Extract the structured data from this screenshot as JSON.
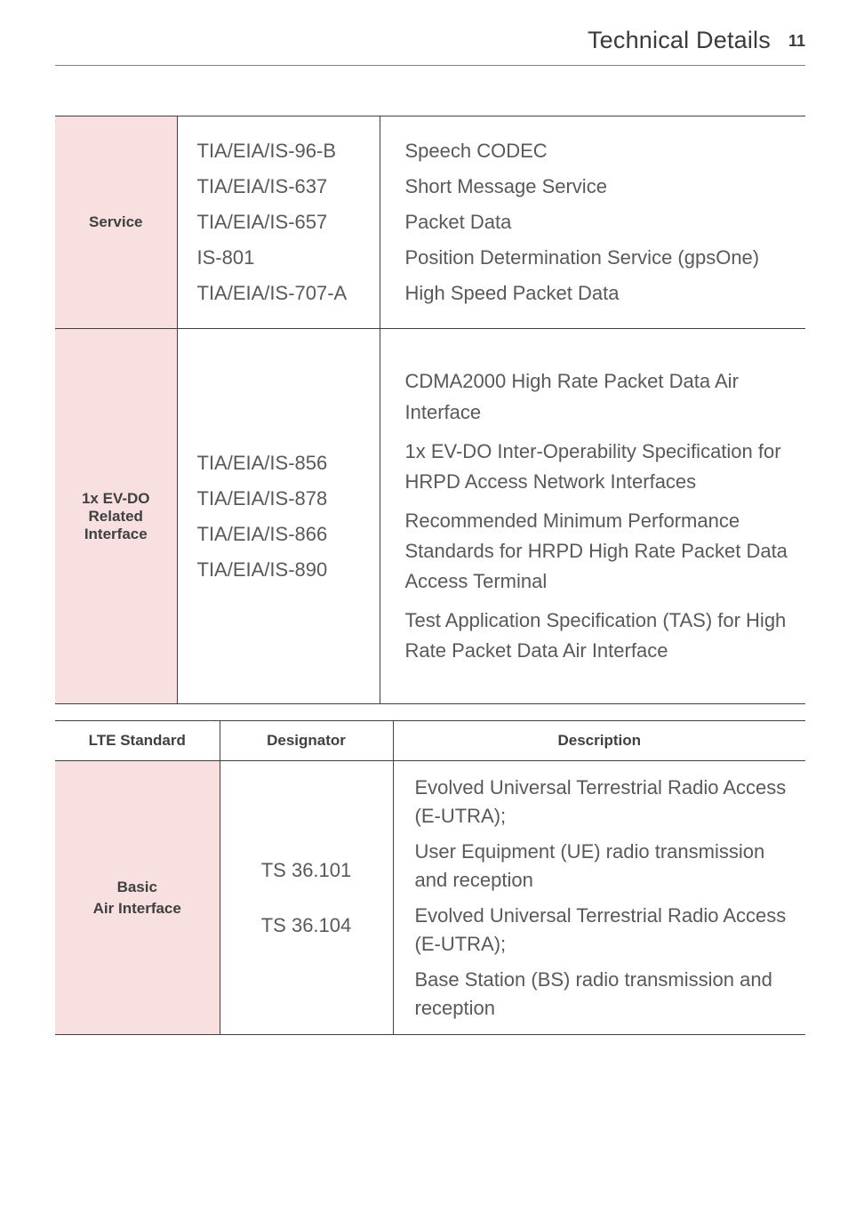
{
  "header": {
    "title": "Technical Details",
    "page_number": "11"
  },
  "colors": {
    "text": "#58595b",
    "heading": "#3a3a3a",
    "rule": "#404041",
    "row_label_bg": "#f8e0e0"
  },
  "table1": {
    "rows": [
      {
        "label": "Service",
        "designators": [
          "TIA/EIA/IS-96-B",
          "TIA/EIA/IS-637",
          "TIA/EIA/IS-657",
          "IS-801",
          "TIA/EIA/IS-707-A"
        ],
        "descriptions": [
          "Speech CODEC",
          "Short Message Service",
          "Packet Data",
          "Position Determination Service (gpsOne)",
          "High Speed Packet Data"
        ]
      },
      {
        "label": "1x EV-DO Related Interface",
        "label_lines": [
          "1x EV-DO",
          "Related",
          "Interface"
        ],
        "designators": [
          "TIA/EIA/IS-856",
          "TIA/EIA/IS-878",
          "TIA/EIA/IS-866",
          "TIA/EIA/IS-890"
        ],
        "descriptions": [
          "CDMA2000 High Rate Packet Data Air Interface",
          "1x EV-DO Inter-Operability Specification for HRPD Access Network Interfaces",
          "Recommended Minimum Performance Standards for HRPD High Rate Packet Data Access Terminal",
          "Test Application Specification (TAS) for High Rate Packet Data Air Interface"
        ]
      }
    ]
  },
  "table2": {
    "headers": {
      "std": "LTE Standard",
      "designator": "Designator",
      "description": "Description"
    },
    "row": {
      "label_lines": [
        "Basic",
        "Air Interface"
      ],
      "designators": [
        "TS 36.101",
        "TS 36.104"
      ],
      "descriptions": [
        "Evolved Universal Terrestrial Radio Access (E-UTRA);",
        "User Equipment (UE) radio transmission and reception",
        "Evolved Universal Terrestrial Radio Access (E-UTRA);",
        "Base Station (BS) radio transmission and reception"
      ]
    }
  }
}
